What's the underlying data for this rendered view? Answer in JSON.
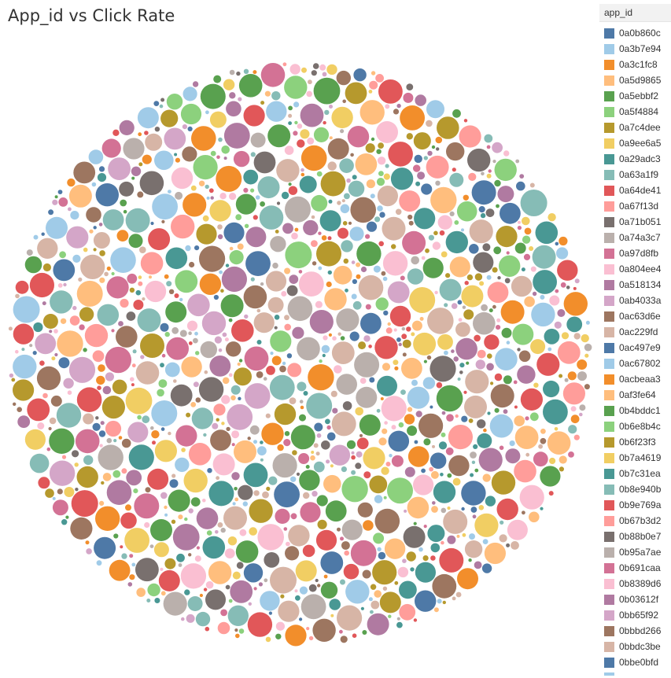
{
  "title": "App_id vs Click Rate",
  "legend": {
    "title": "app_id",
    "items": [
      {
        "label": "0a0b860c",
        "color": "#4e79a7"
      },
      {
        "label": "0a3b7e94",
        "color": "#a0cbe8"
      },
      {
        "label": "0a3c1fc8",
        "color": "#f28e2b"
      },
      {
        "label": "0a5d9865",
        "color": "#ffbe7d"
      },
      {
        "label": "0a5ebbf2",
        "color": "#59a14f"
      },
      {
        "label": "0a5f4884",
        "color": "#8cd17d"
      },
      {
        "label": "0a7c4dee",
        "color": "#b6992d"
      },
      {
        "label": "0a9ee6a5",
        "color": "#f1ce63"
      },
      {
        "label": "0a29adc3",
        "color": "#499894"
      },
      {
        "label": "0a63a1f9",
        "color": "#86bcb6"
      },
      {
        "label": "0a64de41",
        "color": "#e15759"
      },
      {
        "label": "0a67f13d",
        "color": "#ff9d9a"
      },
      {
        "label": "0a71b051",
        "color": "#79706e"
      },
      {
        "label": "0a74a3c7",
        "color": "#bab0ac"
      },
      {
        "label": "0a97d8fb",
        "color": "#d37295"
      },
      {
        "label": "0a804ee4",
        "color": "#fabfd2"
      },
      {
        "label": "0a518134",
        "color": "#b07aa1"
      },
      {
        "label": "0ab4033a",
        "color": "#d4a6c8"
      },
      {
        "label": "0ac63d6e",
        "color": "#9d7660"
      },
      {
        "label": "0ac229fd",
        "color": "#d7b5a6"
      },
      {
        "label": "0ac497e9",
        "color": "#4e79a7"
      },
      {
        "label": "0ac67802",
        "color": "#a0cbe8"
      },
      {
        "label": "0acbeaa3",
        "color": "#f28e2b"
      },
      {
        "label": "0af3fe64",
        "color": "#ffbe7d"
      },
      {
        "label": "0b4bddc1",
        "color": "#59a14f"
      },
      {
        "label": "0b6e8b4c",
        "color": "#8cd17d"
      },
      {
        "label": "0b6f23f3",
        "color": "#b6992d"
      },
      {
        "label": "0b7a4619",
        "color": "#f1ce63"
      },
      {
        "label": "0b7c31ea",
        "color": "#499894"
      },
      {
        "label": "0b8e940b",
        "color": "#86bcb6"
      },
      {
        "label": "0b9e769a",
        "color": "#e15759"
      },
      {
        "label": "0b67b3d2",
        "color": "#ff9d9a"
      },
      {
        "label": "0b88b0e7",
        "color": "#79706e"
      },
      {
        "label": "0b95a7ae",
        "color": "#bab0ac"
      },
      {
        "label": "0b691caa",
        "color": "#d37295"
      },
      {
        "label": "0b8389d6",
        "color": "#fabfd2"
      },
      {
        "label": "0b03612f",
        "color": "#b07aa1"
      },
      {
        "label": "0bb65f92",
        "color": "#d4a6c8"
      },
      {
        "label": "0bbbd266",
        "color": "#9d7660"
      },
      {
        "label": "0bbdc3be",
        "color": "#d7b5a6"
      },
      {
        "label": "0bbe0bfd",
        "color": "#4e79a7"
      }
    ]
  },
  "chart_data": {
    "type": "packed-bubble",
    "title": "App_id vs Click Rate",
    "dimension": "app_id",
    "measure": "Click Rate",
    "palette": [
      "#4e79a7",
      "#a0cbe8",
      "#f28e2b",
      "#ffbe7d",
      "#59a14f",
      "#8cd17d",
      "#b6992d",
      "#f1ce63",
      "#499894",
      "#86bcb6",
      "#e15759",
      "#ff9d9a",
      "#79706e",
      "#bab0ac",
      "#d37295",
      "#fabfd2",
      "#b07aa1",
      "#d4a6c8",
      "#9d7660",
      "#d7b5a6"
    ],
    "legend_position": "right"
  }
}
